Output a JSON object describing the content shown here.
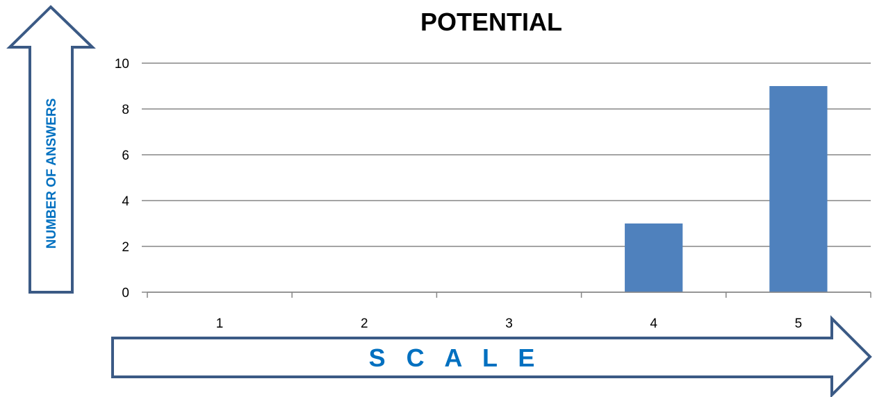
{
  "chart_data": {
    "type": "bar",
    "title": "POTENTIAL",
    "categories": [
      "1",
      "2",
      "3",
      "4",
      "5"
    ],
    "values": [
      0,
      0,
      0,
      3,
      9
    ],
    "ylim": [
      0,
      10
    ],
    "yticks": [
      0,
      2,
      4,
      6,
      8,
      10
    ],
    "xlabel": "S C A L E",
    "ylabel": "NUMBER OF ANSWERS",
    "grid": true,
    "bar_color": "#4f81bd",
    "gridline_color": "#868686",
    "arrow_outline_color": "#3b5a85",
    "axis_label_color": "#0070c0"
  }
}
